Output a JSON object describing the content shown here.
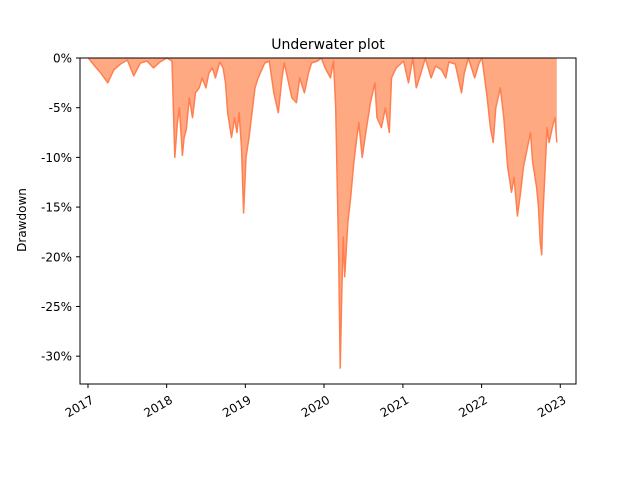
{
  "chart_data": {
    "type": "area",
    "title": "Underwater plot",
    "xlabel": "",
    "ylabel": "Drawdown",
    "x_ticks": [
      "2017",
      "2018",
      "2019",
      "2020",
      "2021",
      "2022",
      "2023"
    ],
    "y_ticks": [
      "0%",
      "-5%",
      "-10%",
      "-15%",
      "-20%",
      "-25%",
      "-30%"
    ],
    "y_tick_values": [
      0,
      -5,
      -10,
      -15,
      -20,
      -25,
      -30
    ],
    "xlim": [
      "2016-11-25",
      "2023-03-15"
    ],
    "ylim": [
      -32.8,
      0
    ],
    "grid": false,
    "fill_color": "#FF8C5A",
    "line_color": "#FF7F50",
    "series": [
      {
        "x": [
          "2017-01-03",
          "2017-02-01",
          "2017-03-01",
          "2017-04-03",
          "2017-05-01",
          "2017-06-01",
          "2017-07-03",
          "2017-08-01",
          "2017-09-01",
          "2017-10-02",
          "2017-11-01",
          "2017-12-01",
          "2018-01-02",
          "2018-01-26",
          "2018-02-08",
          "2018-02-20",
          "2018-03-01",
          "2018-03-15",
          "2018-03-23",
          "2018-04-02",
          "2018-04-16",
          "2018-05-01",
          "2018-05-15",
          "2018-06-01",
          "2018-06-15",
          "2018-07-02",
          "2018-07-16",
          "2018-08-01",
          "2018-08-15",
          "2018-09-04",
          "2018-09-20",
          "2018-10-01",
          "2018-10-11",
          "2018-10-29",
          "2018-11-12",
          "2018-11-23",
          "2018-12-03",
          "2018-12-14",
          "2018-12-24",
          "2019-01-04",
          "2019-01-18",
          "2019-02-01",
          "2019-02-15",
          "2019-03-01",
          "2019-03-22",
          "2019-04-01",
          "2019-04-22",
          "2019-05-13",
          "2019-06-03",
          "2019-06-20",
          "2019-07-01",
          "2019-08-05",
          "2019-08-26",
          "2019-09-10",
          "2019-10-02",
          "2019-10-21",
          "2019-11-04",
          "2019-12-02",
          "2019-12-20",
          "2020-01-06",
          "2020-01-31",
          "2020-02-14",
          "2020-02-24",
          "2020-03-02",
          "2020-03-09",
          "2020-03-16",
          "2020-03-23",
          "2020-03-30",
          "2020-04-06",
          "2020-04-21",
          "2020-05-04",
          "2020-05-18",
          "2020-06-01",
          "2020-06-11",
          "2020-06-26",
          "2020-07-13",
          "2020-08-03",
          "2020-08-24",
          "2020-09-03",
          "2020-09-23",
          "2020-10-12",
          "2020-10-30",
          "2020-11-09",
          "2020-12-01",
          "2021-01-04",
          "2021-01-27",
          "2021-02-16",
          "2021-03-04",
          "2021-03-26",
          "2021-04-15",
          "2021-05-12",
          "2021-06-01",
          "2021-06-30",
          "2021-07-19",
          "2021-08-02",
          "2021-09-01",
          "2021-09-30",
          "2021-10-13",
          "2021-11-01",
          "2021-11-30",
          "2021-12-20",
          "2022-01-03",
          "2022-01-27",
          "2022-02-11",
          "2022-02-24",
          "2022-03-08",
          "2022-03-29",
          "2022-04-14",
          "2022-05-02",
          "2022-05-20",
          "2022-06-01",
          "2022-06-16",
          "2022-07-01",
          "2022-07-14",
          "2022-08-16",
          "2022-08-26",
          "2022-09-13",
          "2022-09-22",
          "2022-09-30",
          "2022-10-07",
          "2022-10-12",
          "2022-10-21",
          "2022-11-01",
          "2022-11-10",
          "2022-11-30",
          "2022-12-08",
          "2022-12-16"
        ],
        "y": [
          0,
          -0.8,
          -1.5,
          -2.5,
          -1.2,
          -0.6,
          -0.2,
          -1.8,
          -0.5,
          -0.3,
          -1.0,
          -0.4,
          0,
          -0.3,
          -10.0,
          -6.5,
          -5.0,
          -9.8,
          -8.0,
          -7.2,
          -4.0,
          -6.0,
          -3.5,
          -3.0,
          -2.0,
          -3.0,
          -1.5,
          -1.0,
          -2.0,
          -0.4,
          -1.0,
          -2.5,
          -5.5,
          -8.0,
          -6.0,
          -7.5,
          -5.5,
          -9.0,
          -15.6,
          -10.0,
          -8.0,
          -5.5,
          -3.0,
          -2.0,
          -1.0,
          -0.5,
          -0.3,
          -3.5,
          -5.5,
          -2.0,
          -0.5,
          -4.0,
          -4.5,
          -2.0,
          -3.5,
          -1.5,
          -0.5,
          -0.3,
          0,
          -1.0,
          -2.0,
          -0.3,
          -5.0,
          -12.5,
          -20.0,
          -31.2,
          -24.0,
          -18.0,
          -22.0,
          -16.5,
          -14.0,
          -10.5,
          -8.0,
          -6.5,
          -10.0,
          -7.5,
          -4.5,
          -2.5,
          -6.0,
          -7.0,
          -5.0,
          -7.5,
          -2.0,
          -1.0,
          -0.3,
          -2.5,
          0,
          -3.0,
          -1.5,
          0,
          -2.0,
          -0.8,
          -1.2,
          -2.0,
          -0.4,
          -0.6,
          -3.5,
          -1.5,
          0,
          -2.0,
          -0.5,
          0,
          -4.0,
          -7.0,
          -8.5,
          -5.0,
          -3.0,
          -6.0,
          -11.0,
          -13.5,
          -12.0,
          -15.9,
          -13.5,
          -11.0,
          -7.5,
          -10.5,
          -13.0,
          -15.0,
          -18.5,
          -19.8,
          -16.0,
          -12.0,
          -7.0,
          -8.5,
          -6.5,
          -6.0,
          -8.5
        ]
      }
    ]
  }
}
